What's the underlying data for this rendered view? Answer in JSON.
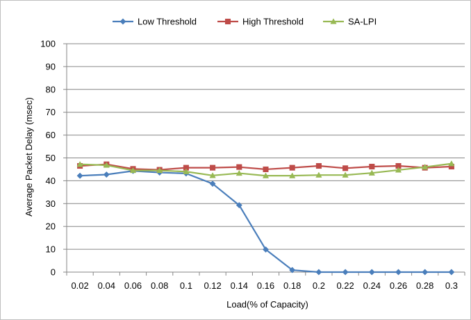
{
  "chart_data": {
    "type": "line",
    "title": "",
    "xlabel": "Load(% of Capacity)",
    "ylabel": "Average Packet Delay (msec)",
    "ylim": [
      0,
      100
    ],
    "yticks": [
      0,
      10,
      20,
      30,
      40,
      50,
      60,
      70,
      80,
      90,
      100
    ],
    "grid": "horizontal",
    "legend": "top-center",
    "categories": [
      "0.02",
      "0.04",
      "0.06",
      "0.08",
      "0.1",
      "0.12",
      "0.14",
      "0.16",
      "0.18",
      "0.2",
      "0.22",
      "0.24",
      "0.26",
      "0.28",
      "0.3"
    ],
    "series": [
      {
        "name": "Low Threshold",
        "color": "#4a7ebb",
        "marker": "diamond",
        "values": [
          42.2,
          42.7,
          44.3,
          43.6,
          43.2,
          38.7,
          29.3,
          9.9,
          0.9,
          0,
          0,
          0,
          0,
          0,
          0
        ]
      },
      {
        "name": "High Threshold",
        "color": "#be4b48",
        "marker": "square",
        "values": [
          46.5,
          47.2,
          45.2,
          44.8,
          45.7,
          45.7,
          46.0,
          45.0,
          45.7,
          46.5,
          45.5,
          46.2,
          46.5,
          45.7,
          46.2
        ]
      },
      {
        "name": "SA-LPI",
        "color": "#98b954",
        "marker": "triangle",
        "values": [
          47.2,
          46.8,
          44.5,
          44.5,
          44.0,
          42.3,
          43.3,
          42.2,
          42.2,
          42.5,
          42.5,
          43.4,
          44.7,
          46.0,
          47.5
        ]
      }
    ]
  }
}
